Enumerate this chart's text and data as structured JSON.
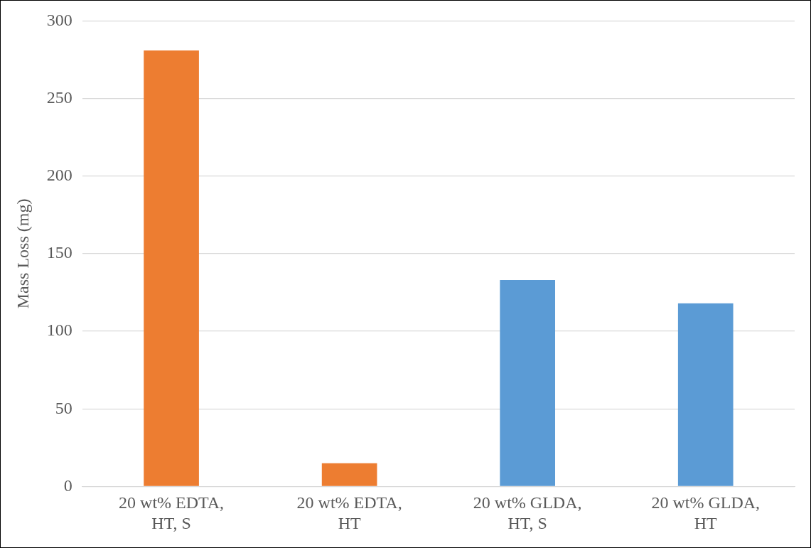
{
  "chart_data": {
    "type": "bar",
    "ylabel": "Mass Loss (mg)",
    "categories": [
      "20 wt% EDTA, HT, S",
      "20 wt% EDTA, HT",
      "20 wt% GLDA, HT, S",
      "20 wt% GLDA, HT"
    ],
    "values": [
      281,
      15,
      133,
      118
    ],
    "colors": [
      "#ed7d31",
      "#ed7d31",
      "#5b9bd5",
      "#5b9bd5"
    ],
    "ylim": [
      0,
      300
    ],
    "yticks": [
      0,
      50,
      100,
      150,
      200,
      250,
      300
    ],
    "grid": "y",
    "legend": false
  }
}
